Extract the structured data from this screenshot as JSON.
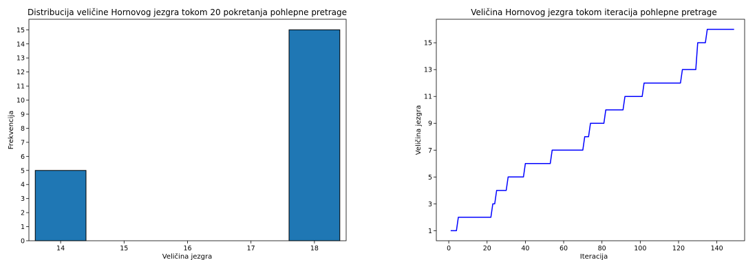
{
  "chart_data": [
    {
      "type": "bar",
      "title": "Distribucija veličine Hornovog jezgra tokom 20 pokretanja pohlepne pretrage",
      "xlabel": "Veličina jezgra",
      "ylabel": "Frekvencija",
      "categories": [
        14,
        18
      ],
      "values": [
        5,
        15
      ],
      "xticks": [
        "14",
        "15",
        "16",
        "17",
        "18"
      ],
      "yticks": [
        "0",
        "1",
        "2",
        "3",
        "4",
        "5",
        "6",
        "7",
        "8",
        "9",
        "10",
        "11",
        "12",
        "13",
        "14",
        "15"
      ],
      "xlim": [
        13.5,
        18.5
      ],
      "ylim": [
        0,
        15.75
      ],
      "bar_color": "#1f77b4",
      "edge_color": "#000000",
      "grid": false
    },
    {
      "type": "line",
      "title": "Veličina Hornovog jezgra tokom iteracija pohlepne pretrage",
      "xlabel": "Iteracija",
      "ylabel": "Veličina jezgra",
      "xticks": [
        "0",
        "20",
        "40",
        "60",
        "80",
        "100",
        "120",
        "140"
      ],
      "yticks": [
        "1",
        "3",
        "5",
        "7",
        "9",
        "11",
        "13",
        "15"
      ],
      "xlim": [
        -6.5,
        154.5
      ],
      "ylim": [
        0.25,
        16.75
      ],
      "line_color": "#0000ff",
      "grid": false,
      "series": [
        {
          "x": [
            1,
            4,
            5,
            22,
            23,
            24,
            25,
            30,
            31,
            39,
            40,
            53,
            54,
            70,
            71,
            73,
            74,
            81,
            82,
            91,
            92,
            101,
            102,
            121,
            122,
            129,
            130,
            134,
            135,
            149
          ],
          "y": [
            1,
            1,
            2,
            2,
            3,
            3,
            4,
            4,
            5,
            5,
            6,
            6,
            7,
            7,
            8,
            8,
            9,
            9,
            10,
            10,
            11,
            11,
            12,
            12,
            13,
            13,
            15,
            15,
            16,
            16
          ]
        }
      ]
    }
  ]
}
